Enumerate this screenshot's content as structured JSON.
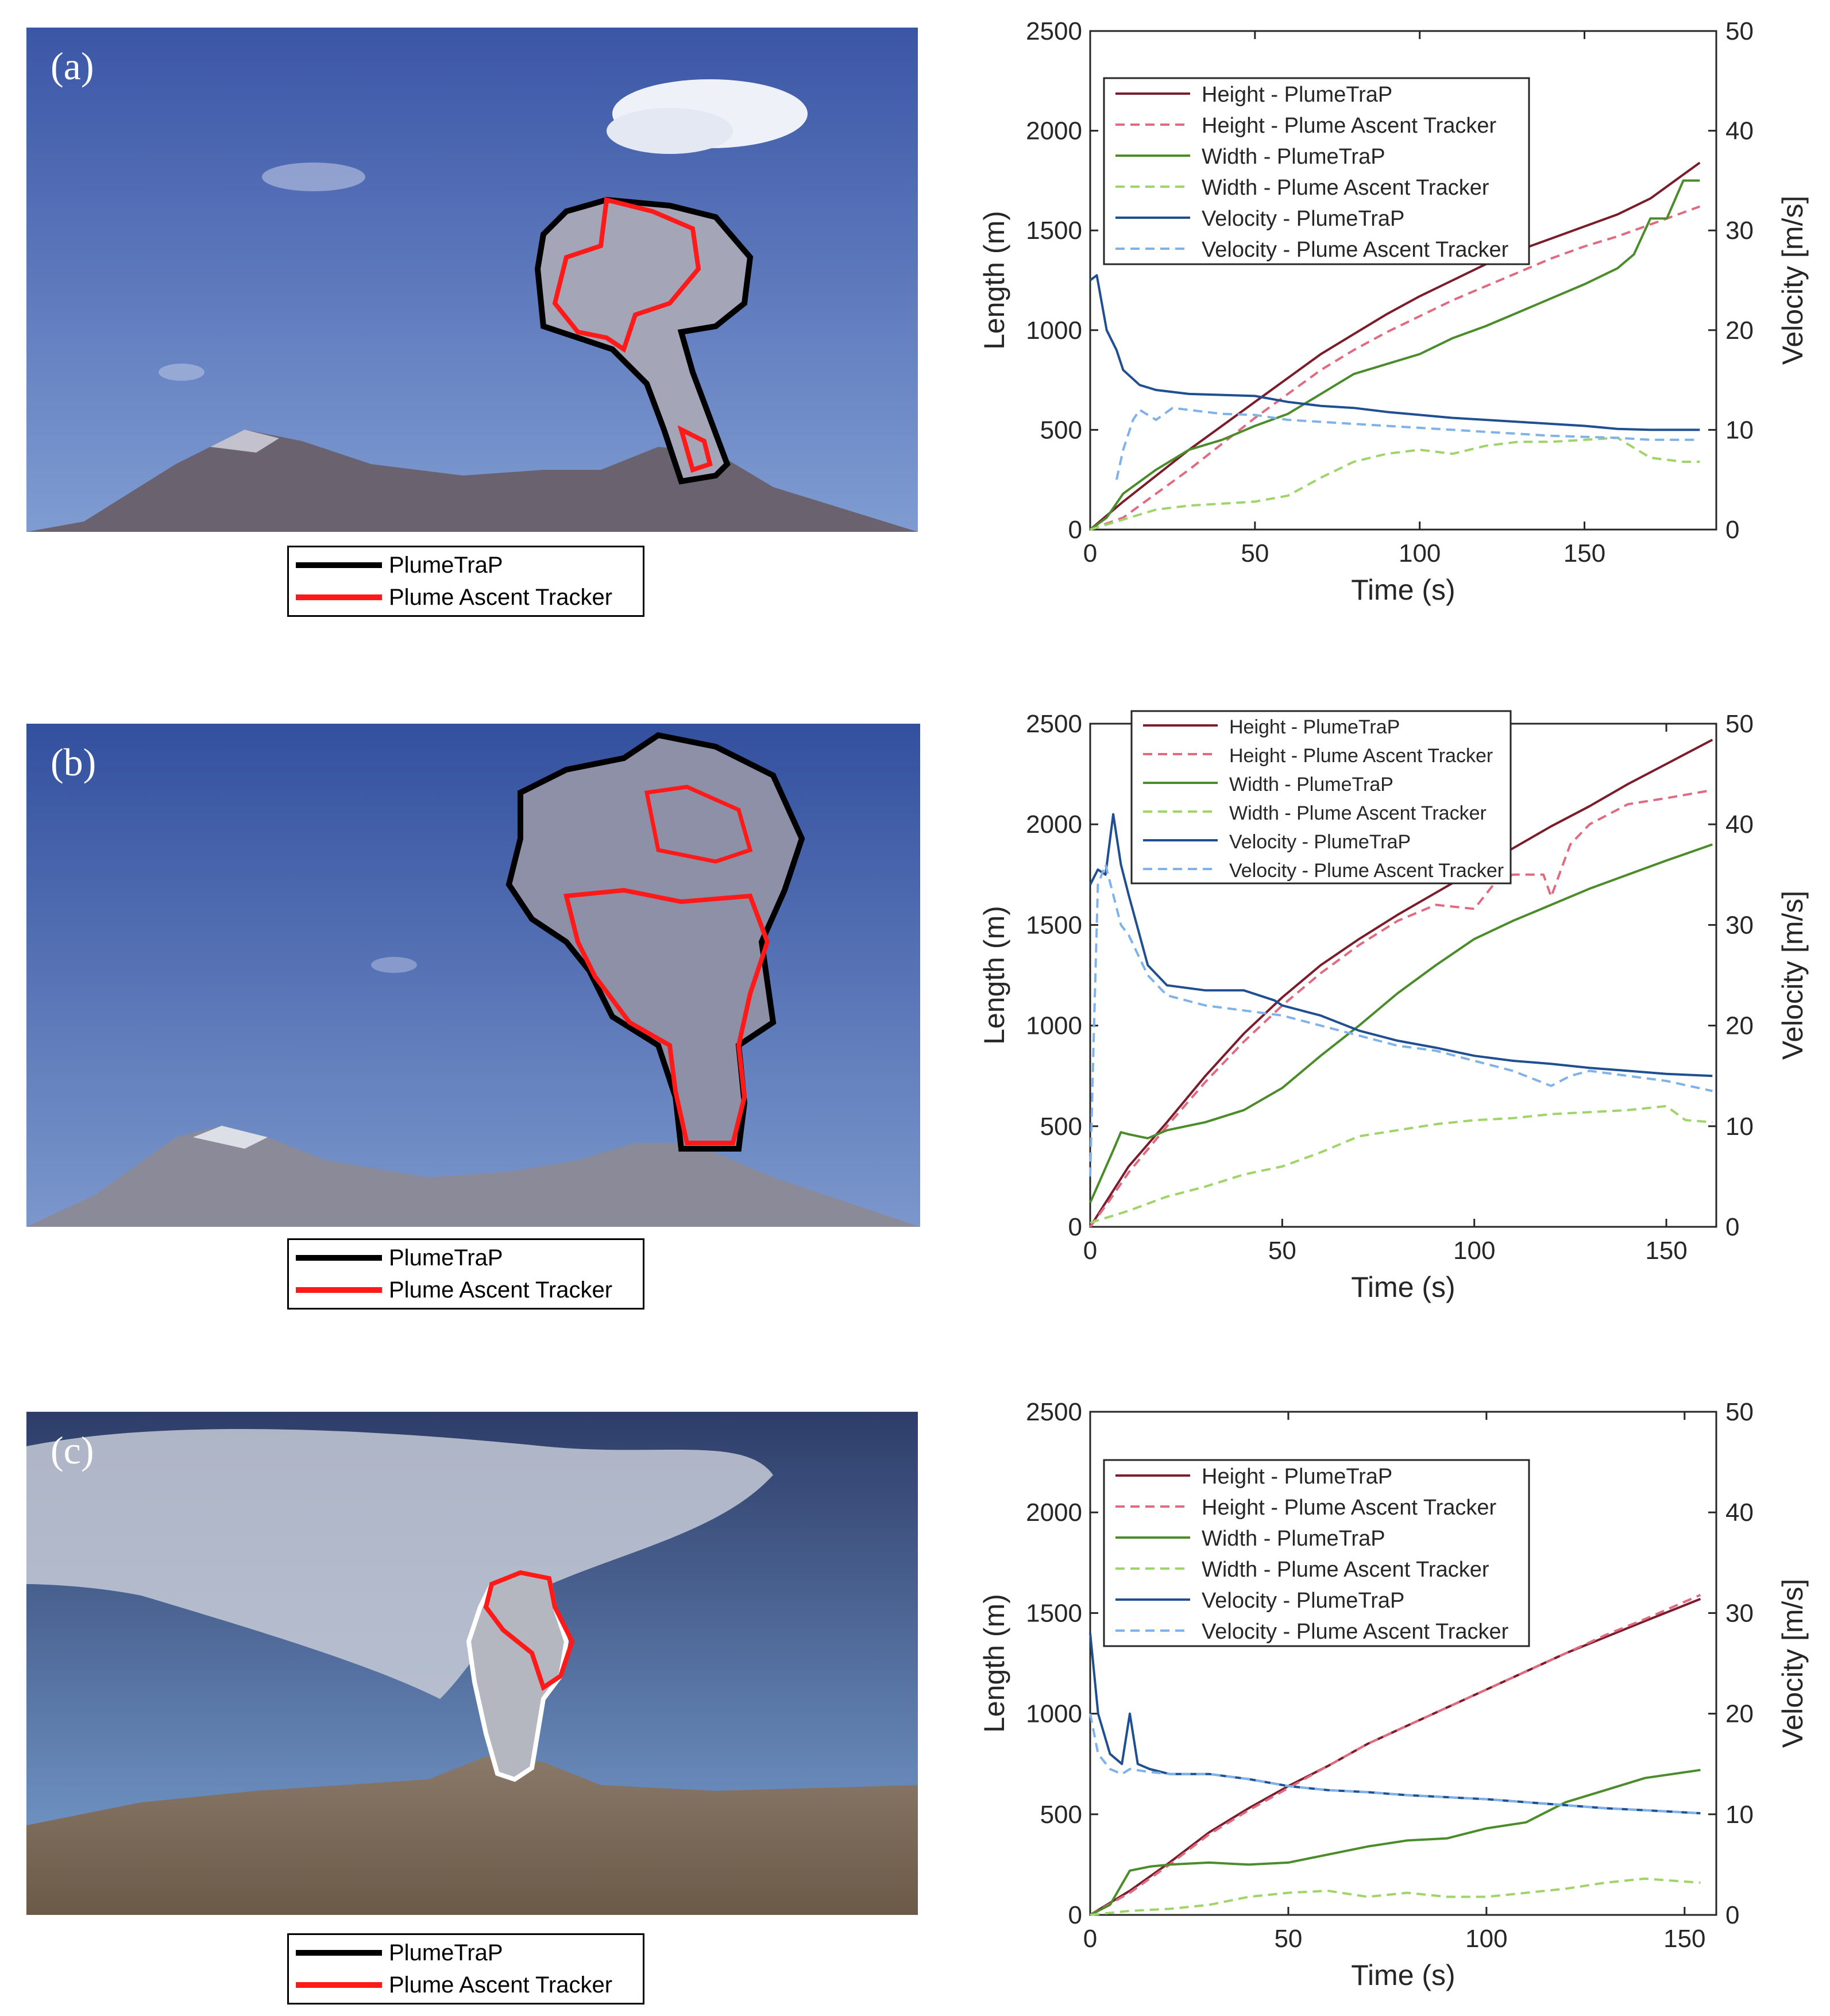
{
  "panels": [
    {
      "letter": "(a)",
      "legend": [
        {
          "label": "PlumeTraP",
          "color": "#000000"
        },
        {
          "label": "Plume Ascent Tracker",
          "color": "#ff1a1a"
        }
      ],
      "photo_colors": {
        "sky_top": "#3d59a8",
        "sky_bottom": "#7f9bd0",
        "mountain": "#6b6270",
        "plume": "#a6a8b8"
      }
    },
    {
      "letter": "(b)",
      "legend": [
        {
          "label": "PlumeTraP",
          "color": "#000000"
        },
        {
          "label": "Plume Ascent Tracker",
          "color": "#ff1a1a"
        }
      ],
      "photo_colors": {
        "sky_top": "#34509e",
        "sky_bottom": "#7d98cc",
        "mountain": "#8a8a98",
        "plume": "#8e90a8"
      }
    },
    {
      "letter": "(c)",
      "legend": [
        {
          "label": "PlumeTraP",
          "color": "#000000"
        },
        {
          "label": "Plume Ascent Tracker",
          "color": "#ff1a1a"
        }
      ],
      "photo_colors": {
        "sky_top": "#2f3e6a",
        "sky_bottom": "#7aa0d0",
        "mountain": "#7a6a5c",
        "plume": "#b4b6c0"
      }
    }
  ],
  "chart_data": [
    {
      "type": "line",
      "xlabel": "Time (s)",
      "ylabel": "Length (m)",
      "y2label": "Velocity [m/s]",
      "xlim": [
        0,
        190
      ],
      "ylim": [
        0,
        2500
      ],
      "y2lim": [
        0,
        50
      ],
      "xticks": [
        0,
        50,
        100,
        150
      ],
      "yticks": [
        0,
        500,
        1000,
        1500,
        2000,
        2500
      ],
      "y2ticks": [
        0,
        10,
        20,
        30,
        40,
        50
      ],
      "legend_position": "top-left",
      "series": [
        {
          "name": "Height - PlumeTraP",
          "axis": "left",
          "color": "#7b1c2a",
          "dash": false,
          "x": [
            0,
            10,
            20,
            30,
            40,
            50,
            60,
            70,
            80,
            90,
            100,
            110,
            120,
            130,
            140,
            150,
            160,
            170,
            180,
            185
          ],
          "y": [
            0,
            140,
            270,
            400,
            520,
            640,
            760,
            880,
            980,
            1080,
            1170,
            1250,
            1330,
            1400,
            1460,
            1520,
            1580,
            1660,
            1780,
            1840
          ]
        },
        {
          "name": "Height - Plume Ascent Tracker",
          "axis": "left",
          "color": "#e06a80",
          "dash": true,
          "x": [
            0,
            10,
            20,
            30,
            40,
            50,
            60,
            70,
            80,
            90,
            100,
            110,
            120,
            130,
            140,
            150,
            160,
            170,
            180,
            185
          ],
          "y": [
            0,
            60,
            180,
            300,
            430,
            560,
            680,
            800,
            900,
            990,
            1070,
            1150,
            1220,
            1290,
            1360,
            1420,
            1470,
            1530,
            1590,
            1620
          ]
        },
        {
          "name": "Width - PlumeTraP",
          "axis": "left",
          "color": "#4a8c2a",
          "dash": false,
          "x": [
            0,
            5,
            10,
            20,
            30,
            40,
            50,
            60,
            70,
            80,
            90,
            100,
            110,
            120,
            130,
            140,
            150,
            160,
            165,
            170,
            175,
            180,
            185
          ],
          "y": [
            0,
            60,
            180,
            300,
            400,
            450,
            520,
            580,
            680,
            780,
            830,
            880,
            960,
            1020,
            1090,
            1160,
            1230,
            1310,
            1380,
            1560,
            1560,
            1750,
            1750
          ]
        },
        {
          "name": "Width - Plume Ascent Tracker",
          "axis": "left",
          "color": "#9ed468",
          "dash": true,
          "x": [
            0,
            10,
            20,
            30,
            40,
            50,
            60,
            70,
            80,
            90,
            100,
            110,
            120,
            130,
            140,
            150,
            160,
            170,
            180,
            185
          ],
          "y": [
            0,
            50,
            100,
            120,
            130,
            140,
            170,
            260,
            340,
            380,
            400,
            380,
            420,
            440,
            440,
            450,
            460,
            360,
            340,
            340
          ]
        },
        {
          "name": "Velocity - PlumeTraP",
          "axis": "right",
          "color": "#1f4f91",
          "dash": false,
          "x": [
            0,
            2,
            5,
            8,
            10,
            15,
            20,
            30,
            40,
            50,
            60,
            70,
            80,
            90,
            100,
            110,
            120,
            130,
            140,
            150,
            160,
            170,
            185
          ],
          "y": [
            25,
            25.5,
            20,
            18,
            16,
            14.5,
            14,
            13.6,
            13.5,
            13.4,
            12.8,
            12.4,
            12.2,
            11.8,
            11.5,
            11.2,
            11.0,
            10.8,
            10.6,
            10.4,
            10.1,
            10.0,
            10.0
          ]
        },
        {
          "name": "Velocity - Plume Ascent Tracker",
          "axis": "right",
          "color": "#7fb2e8",
          "dash": true,
          "x": [
            8,
            10,
            13,
            15,
            20,
            25,
            30,
            40,
            50,
            60,
            70,
            80,
            90,
            100,
            110,
            120,
            130,
            140,
            150,
            160,
            170,
            185
          ],
          "y": [
            5,
            8,
            11,
            12,
            11,
            12.2,
            12,
            11.6,
            11.5,
            11.0,
            10.8,
            10.6,
            10.4,
            10.2,
            10.0,
            9.8,
            9.6,
            9.4,
            9.3,
            9.2,
            9.0,
            9.0
          ]
        }
      ]
    },
    {
      "type": "line",
      "xlabel": "Time (s)",
      "ylabel": "Length (m)",
      "y2label": "Velocity [m/s]",
      "xlim": [
        0,
        163
      ],
      "ylim": [
        0,
        2500
      ],
      "y2lim": [
        0,
        50
      ],
      "xticks": [
        0,
        50,
        100,
        150
      ],
      "yticks": [
        0,
        500,
        1000,
        1500,
        2000,
        2500
      ],
      "y2ticks": [
        0,
        10,
        20,
        30,
        40,
        50
      ],
      "legend_position": "top-center",
      "series": [
        {
          "name": "Height - PlumeTraP",
          "axis": "left",
          "color": "#7b1c2a",
          "dash": false,
          "x": [
            0,
            5,
            10,
            20,
            30,
            40,
            50,
            60,
            70,
            80,
            90,
            100,
            110,
            120,
            130,
            140,
            150,
            162
          ],
          "y": [
            0,
            150,
            300,
            520,
            750,
            960,
            1140,
            1300,
            1430,
            1550,
            1660,
            1770,
            1880,
            1990,
            2090,
            2200,
            2300,
            2420
          ]
        },
        {
          "name": "Height - Plume Ascent Tracker",
          "axis": "left",
          "color": "#e06a80",
          "dash": true,
          "x": [
            0,
            5,
            10,
            20,
            30,
            40,
            50,
            60,
            70,
            80,
            90,
            100,
            105,
            110,
            118,
            120,
            125,
            130,
            140,
            150,
            162
          ],
          "y": [
            0,
            130,
            270,
            500,
            720,
            920,
            1100,
            1260,
            1400,
            1520,
            1600,
            1580,
            1700,
            1750,
            1750,
            1640,
            1900,
            2000,
            2100,
            2130,
            2170
          ]
        },
        {
          "name": "Width - PlumeTraP",
          "axis": "left",
          "color": "#4a8c2a",
          "dash": false,
          "x": [
            0,
            3,
            6,
            8,
            10,
            15,
            20,
            30,
            40,
            50,
            60,
            70,
            80,
            90,
            100,
            110,
            120,
            130,
            140,
            150,
            162
          ],
          "y": [
            120,
            250,
            380,
            470,
            460,
            440,
            480,
            520,
            580,
            690,
            850,
            1000,
            1160,
            1300,
            1430,
            1520,
            1600,
            1680,
            1750,
            1820,
            1900
          ]
        },
        {
          "name": "Width - Plume Ascent Tracker",
          "axis": "left",
          "color": "#9ed468",
          "dash": true,
          "x": [
            0,
            10,
            20,
            30,
            40,
            50,
            60,
            70,
            80,
            90,
            100,
            110,
            120,
            130,
            140,
            150,
            155,
            162
          ],
          "y": [
            20,
            80,
            150,
            200,
            260,
            300,
            370,
            450,
            480,
            510,
            530,
            540,
            560,
            570,
            580,
            600,
            530,
            520
          ]
        },
        {
          "name": "Velocity - PlumeTraP",
          "axis": "right",
          "color": "#1f4f91",
          "dash": false,
          "x": [
            0,
            2,
            4,
            6,
            8,
            10,
            15,
            20,
            30,
            40,
            48,
            50,
            60,
            70,
            80,
            90,
            100,
            110,
            120,
            130,
            140,
            150,
            162
          ],
          "y": [
            34,
            35.5,
            35,
            41,
            36,
            33,
            26,
            24,
            23.5,
            23.5,
            22.5,
            22,
            21,
            19.5,
            18.5,
            17.8,
            17,
            16.5,
            16.2,
            15.8,
            15.5,
            15.2,
            15
          ]
        },
        {
          "name": "Velocity - Plume Ascent Tracker",
          "axis": "right",
          "color": "#7fb2e8",
          "dash": true,
          "x": [
            0,
            1,
            2,
            4,
            6,
            8,
            10,
            15,
            20,
            30,
            40,
            50,
            60,
            70,
            80,
            90,
            100,
            110,
            120,
            125,
            130,
            140,
            150,
            162
          ],
          "y": [
            5,
            20,
            34,
            36,
            33,
            30,
            29,
            25,
            23,
            22,
            21.5,
            21,
            20,
            19,
            18,
            17.5,
            16.5,
            15.5,
            14,
            15,
            15.5,
            15,
            14.5,
            13.5
          ]
        }
      ]
    },
    {
      "type": "line",
      "xlabel": "Time (s)",
      "ylabel": "Length (m)",
      "y2label": "Velocity [m/s]",
      "xlim": [
        0,
        158
      ],
      "ylim": [
        0,
        2500
      ],
      "y2lim": [
        0,
        50
      ],
      "xticks": [
        0,
        50,
        100,
        150
      ],
      "yticks": [
        0,
        500,
        1000,
        1500,
        2000,
        2500
      ],
      "y2ticks": [
        0,
        10,
        20,
        30,
        40,
        50
      ],
      "legend_position": "top-left",
      "series": [
        {
          "name": "Height - PlumeTraP",
          "axis": "left",
          "color": "#7b1c2a",
          "dash": false,
          "x": [
            0,
            10,
            20,
            30,
            40,
            50,
            60,
            70,
            80,
            90,
            100,
            110,
            120,
            130,
            140,
            154
          ],
          "y": [
            0,
            120,
            260,
            410,
            530,
            640,
            740,
            850,
            940,
            1030,
            1120,
            1210,
            1300,
            1380,
            1460,
            1570
          ]
        },
        {
          "name": "Height - Plume Ascent Tracker",
          "axis": "left",
          "color": "#e06a80",
          "dash": true,
          "x": [
            0,
            10,
            20,
            30,
            40,
            50,
            60,
            70,
            80,
            90,
            100,
            110,
            120,
            130,
            140,
            154
          ],
          "y": [
            0,
            110,
            250,
            400,
            520,
            630,
            740,
            850,
            940,
            1030,
            1120,
            1210,
            1300,
            1390,
            1470,
            1590
          ]
        },
        {
          "name": "Width - PlumeTraP",
          "axis": "left",
          "color": "#4a8c2a",
          "dash": false,
          "x": [
            0,
            5,
            10,
            15,
            20,
            30,
            40,
            50,
            60,
            70,
            80,
            90,
            100,
            110,
            120,
            130,
            140,
            154
          ],
          "y": [
            0,
            50,
            220,
            240,
            250,
            260,
            250,
            260,
            300,
            340,
            370,
            380,
            430,
            460,
            560,
            620,
            680,
            720
          ]
        },
        {
          "name": "Width - Plume Ascent Tracker",
          "axis": "left",
          "color": "#9ed468",
          "dash": true,
          "x": [
            0,
            10,
            20,
            30,
            40,
            50,
            60,
            70,
            80,
            90,
            100,
            110,
            120,
            130,
            140,
            154
          ],
          "y": [
            0,
            20,
            30,
            50,
            90,
            110,
            120,
            90,
            110,
            90,
            90,
            110,
            130,
            160,
            180,
            160
          ]
        },
        {
          "name": "Velocity - PlumeTraP",
          "axis": "right",
          "color": "#1f4f91",
          "dash": false,
          "x": [
            0,
            2,
            5,
            8,
            10,
            12,
            15,
            20,
            30,
            40,
            50,
            60,
            70,
            80,
            90,
            100,
            110,
            120,
            130,
            140,
            154
          ],
          "y": [
            28,
            20,
            16,
            15,
            20,
            15,
            14.5,
            14,
            14,
            13.5,
            12.8,
            12.4,
            12.2,
            11.9,
            11.7,
            11.5,
            11.2,
            10.9,
            10.6,
            10.4,
            10.1
          ]
        },
        {
          "name": "Velocity - Plume Ascent Tracker",
          "axis": "right",
          "color": "#7fb2e8",
          "dash": true,
          "x": [
            0,
            2,
            5,
            8,
            10,
            15,
            20,
            30,
            40,
            50,
            60,
            70,
            80,
            90,
            100,
            110,
            120,
            130,
            140,
            154
          ],
          "y": [
            20,
            16,
            14.5,
            14,
            14.5,
            14.2,
            14,
            14,
            13.5,
            12.8,
            12.4,
            12.2,
            11.9,
            11.7,
            11.5,
            11.2,
            10.9,
            10.6,
            10.4,
            10.1
          ]
        }
      ]
    }
  ]
}
